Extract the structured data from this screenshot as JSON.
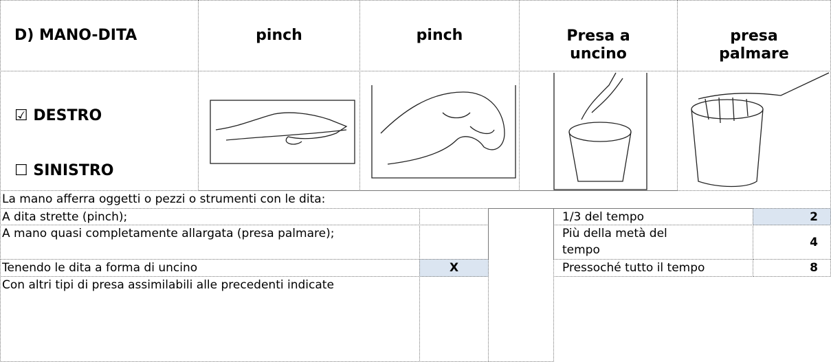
{
  "header": [
    "D) MANO-DITA",
    "pinch",
    "pinch",
    "Presa a uncino",
    "presa palmare"
  ],
  "side": {
    "right": "☑ DESTRO",
    "left": "☐ SINISTRO"
  },
  "intro": "La mano afferra oggetti o pezzi o strumenti con le dita:",
  "grip_rows": [
    {
      "label": "A dita strette (pinch);"
    },
    {
      "label": "A mano quasi completamente allargata (presa palmare);"
    },
    {
      "label": "Tenendo le dita a forma di uncino",
      "mark": "X"
    },
    {
      "label": "Con altri tipi di presa assimilabili alle precedenti indicate"
    }
  ],
  "time_rows": [
    {
      "label": "1/3 del tempo",
      "score": 2
    },
    {
      "label": "Più della metà del tempo",
      "score": 4
    },
    {
      "label": "Pressoché tutto il tempo",
      "score": 8
    }
  ]
}
